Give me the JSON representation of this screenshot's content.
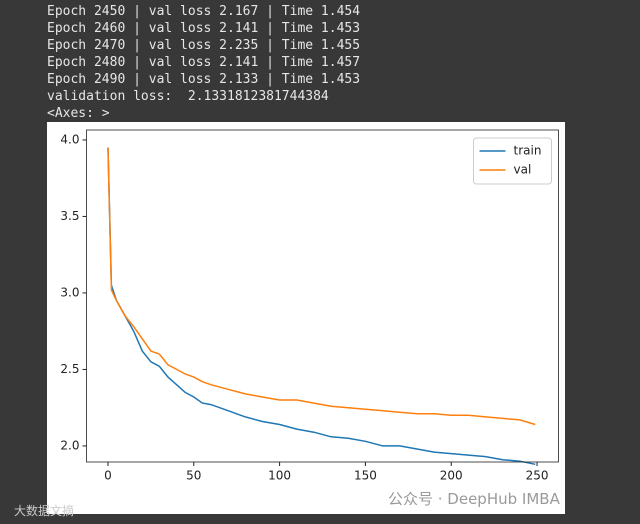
{
  "output_lines": [
    "Epoch 2450 | val loss 2.167 | Time 1.454",
    "Epoch 2460 | val loss 2.141 | Time 1.453",
    "Epoch 2470 | val loss 2.235 | Time 1.455",
    "Epoch 2480 | val loss 2.141 | Time 1.457",
    "Epoch 2490 | val loss 2.133 | Time 1.453",
    "validation loss:  2.1331812381744384",
    "<Axes: >"
  ],
  "watermarks": [
    "公众号 · DeepHub IMBA",
    "大数据文摘"
  ],
  "chart_data": {
    "type": "line",
    "x": [
      0,
      2,
      5,
      10,
      15,
      20,
      25,
      30,
      35,
      40,
      45,
      50,
      55,
      60,
      70,
      80,
      90,
      100,
      110,
      120,
      130,
      140,
      150,
      160,
      170,
      180,
      190,
      200,
      210,
      220,
      230,
      240,
      249
    ],
    "series": [
      {
        "name": "train",
        "color": "#1f77b4",
        "values": [
          3.95,
          3.05,
          2.95,
          2.85,
          2.75,
          2.62,
          2.55,
          2.52,
          2.45,
          2.4,
          2.35,
          2.32,
          2.28,
          2.27,
          2.23,
          2.19,
          2.16,
          2.14,
          2.11,
          2.09,
          2.06,
          2.05,
          2.03,
          2.0,
          2.0,
          1.98,
          1.96,
          1.95,
          1.94,
          1.93,
          1.91,
          1.9,
          1.88
        ]
      },
      {
        "name": "val",
        "color": "#ff7f0e",
        "values": [
          3.95,
          3.02,
          2.95,
          2.85,
          2.78,
          2.7,
          2.62,
          2.6,
          2.53,
          2.5,
          2.47,
          2.45,
          2.42,
          2.4,
          2.37,
          2.34,
          2.32,
          2.3,
          2.3,
          2.28,
          2.26,
          2.25,
          2.24,
          2.23,
          2.22,
          2.21,
          2.21,
          2.2,
          2.2,
          2.19,
          2.18,
          2.17,
          2.14
        ]
      }
    ],
    "xlim": [
      -12.5,
      262.5
    ],
    "xticks": [
      0,
      50,
      100,
      150,
      200,
      250
    ],
    "ylim": [
      1.895,
      4.065
    ],
    "yticks": [
      {
        "value": 2,
        "label": "2.0"
      },
      2.5,
      {
        "value": 3,
        "label": "3.0"
      },
      3.5,
      {
        "value": 4,
        "label": "4.0"
      }
    ],
    "legend": "upper right"
  }
}
